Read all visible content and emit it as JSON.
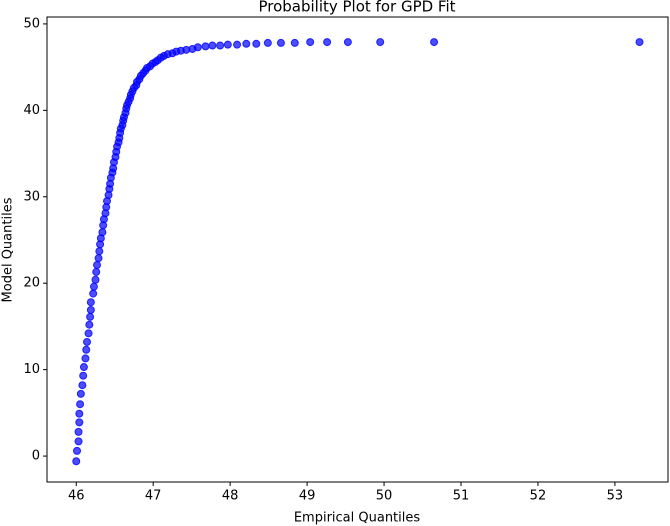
{
  "chart_data": {
    "type": "scatter",
    "title": "Probability Plot for GPD Fit",
    "xlabel": "Empirical Quantiles",
    "ylabel": "Model Quantiles",
    "color": "#0000ff",
    "x": [
      46.0,
      46.01,
      46.03,
      46.03,
      46.04,
      46.04,
      46.05,
      46.06,
      46.08,
      46.09,
      46.1,
      46.12,
      46.13,
      46.14,
      46.16,
      46.17,
      46.18,
      46.19,
      46.19,
      46.22,
      46.23,
      46.25,
      46.26,
      46.27,
      46.29,
      46.3,
      46.31,
      46.32,
      46.34,
      46.35,
      46.36,
      46.38,
      46.39,
      46.4,
      46.42,
      46.43,
      46.44,
      46.45,
      46.47,
      46.48,
      46.49,
      46.51,
      46.52,
      46.53,
      46.55,
      46.56,
      46.57,
      46.58,
      46.6,
      46.61,
      46.62,
      46.64,
      46.65,
      46.66,
      46.68,
      46.7,
      46.71,
      46.73,
      46.75,
      46.78,
      46.79,
      46.82,
      46.84,
      46.87,
      46.9,
      46.92,
      46.96,
      46.99,
      47.03,
      47.06,
      47.1,
      47.14,
      47.19,
      47.25,
      47.3,
      47.36,
      47.43,
      47.51,
      47.58,
      47.68,
      47.77,
      47.87,
      47.97,
      48.09,
      48.21,
      48.34,
      48.49,
      48.66,
      48.84,
      49.04,
      49.26,
      49.53,
      49.95,
      50.65,
      53.32
    ],
    "values": [
      -0.6,
      0.6,
      1.7,
      2.8,
      3.9,
      4.9,
      6.0,
      7.2,
      8.2,
      9.3,
      10.3,
      11.3,
      12.3,
      13.2,
      14.2,
      15.2,
      16.1,
      16.9,
      17.8,
      18.8,
      19.6,
      20.4,
      21.3,
      22.1,
      22.9,
      23.7,
      24.5,
      25.2,
      25.9,
      26.7,
      27.4,
      28.1,
      28.8,
      29.5,
      30.2,
      30.9,
      31.5,
      32.2,
      32.8,
      33.3,
      34.0,
      34.6,
      35.2,
      35.8,
      36.3,
      36.8,
      37.4,
      37.9,
      38.3,
      38.8,
      39.2,
      39.7,
      40.2,
      40.6,
      41.0,
      41.4,
      41.8,
      42.2,
      42.6,
      42.9,
      43.3,
      43.6,
      44.0,
      44.3,
      44.6,
      44.9,
      45.1,
      45.4,
      45.6,
      45.8,
      46.1,
      46.3,
      46.5,
      46.6,
      46.8,
      46.9,
      47.0,
      47.1,
      47.3,
      47.4,
      47.5,
      47.5,
      47.6,
      47.6,
      47.7,
      47.7,
      47.8,
      47.8,
      47.8,
      47.9,
      47.9,
      47.9,
      47.9,
      47.9,
      47.9
    ],
    "xlim": [
      45.62,
      53.69
    ],
    "xticks": [
      46,
      47,
      48,
      49,
      50,
      51,
      52,
      53
    ],
    "ylim": [
      -3.0,
      50.8
    ],
    "yticks": [
      0,
      10,
      20,
      30,
      40,
      50
    ]
  }
}
